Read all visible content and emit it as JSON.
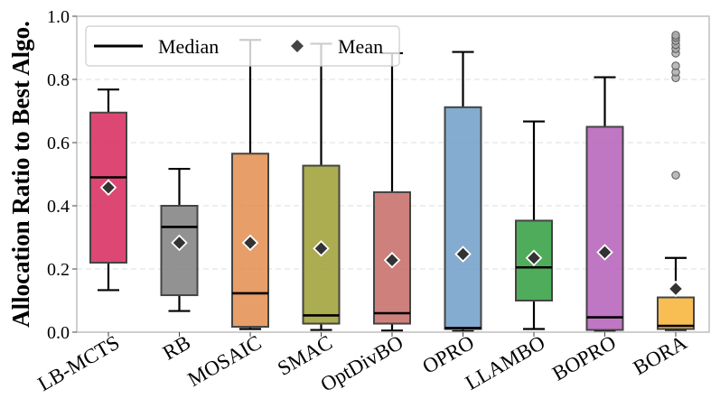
{
  "chart_data": {
    "type": "box",
    "ylabel": "Allocation Ratio to Best Algo.",
    "ylim": [
      0,
      1.0
    ],
    "yticks": [
      0.0,
      0.2,
      0.4,
      0.6,
      0.8,
      1.0
    ],
    "ytick_labels": [
      "0.0",
      "0.2",
      "0.4",
      "0.6",
      "0.8",
      "1.0"
    ],
    "grid": "horizontal-dashed",
    "legend": {
      "placement": "top-left",
      "entries": [
        {
          "label": "Median",
          "marker": "line",
          "color": "#000000"
        },
        {
          "label": "Mean",
          "marker": "diamond",
          "color": "#444444"
        }
      ]
    },
    "categories": [
      "LB-MCTS",
      "RB",
      "MOSAIC",
      "SMAC",
      "OptDivBO",
      "OPRO",
      "LLAMBO",
      "BOPRO",
      "BORA"
    ],
    "boxes": [
      {
        "name": "LB-MCTS",
        "color": "#d6285a",
        "whislo": 0.133,
        "q1": 0.22,
        "med": 0.49,
        "q3": 0.695,
        "whishi": 0.768,
        "mean": 0.458,
        "fliers": []
      },
      {
        "name": "RB",
        "color": "#7f7f7f",
        "whislo": 0.067,
        "q1": 0.117,
        "med": 0.333,
        "q3": 0.4,
        "whishi": 0.517,
        "mean": 0.283,
        "fliers": []
      },
      {
        "name": "MOSAIC",
        "color": "#e38d4d",
        "whislo": 0.01,
        "q1": 0.017,
        "med": 0.123,
        "q3": 0.565,
        "whishi": 0.925,
        "mean": 0.283,
        "fliers": []
      },
      {
        "name": "SMAC",
        "color": "#9e9d33",
        "whislo": 0.007,
        "q1": 0.027,
        "med": 0.053,
        "q3": 0.527,
        "whishi": 0.913,
        "mean": 0.265,
        "fliers": []
      },
      {
        "name": "OptDivBO",
        "color": "#c56a66",
        "whislo": 0.005,
        "q1": 0.027,
        "med": 0.06,
        "q3": 0.443,
        "whishi": 0.883,
        "mean": 0.228,
        "fliers": []
      },
      {
        "name": "OPRO",
        "color": "#6e9ec9",
        "whislo": 0.003,
        "q1": 0.01,
        "med": 0.013,
        "q3": 0.712,
        "whishi": 0.887,
        "mean": 0.247,
        "fliers": []
      },
      {
        "name": "LLAMBO",
        "color": "#2f9e3e",
        "whislo": 0.01,
        "q1": 0.1,
        "med": 0.205,
        "q3": 0.353,
        "whishi": 0.667,
        "mean": 0.235,
        "fliers": []
      },
      {
        "name": "BOPRO",
        "color": "#b55fb8",
        "whislo": 0.003,
        "q1": 0.007,
        "med": 0.047,
        "q3": 0.65,
        "whishi": 0.807,
        "mean": 0.253,
        "fliers": []
      },
      {
        "name": "BORA",
        "color": "#f7b336",
        "whislo": 0.007,
        "q1": 0.01,
        "med": 0.02,
        "q3": 0.11,
        "whishi": 0.235,
        "mean": 0.137,
        "fliers": [
          0.497,
          0.805,
          0.823,
          0.843,
          0.883,
          0.897,
          0.91,
          0.923,
          0.933,
          0.94
        ]
      }
    ]
  }
}
